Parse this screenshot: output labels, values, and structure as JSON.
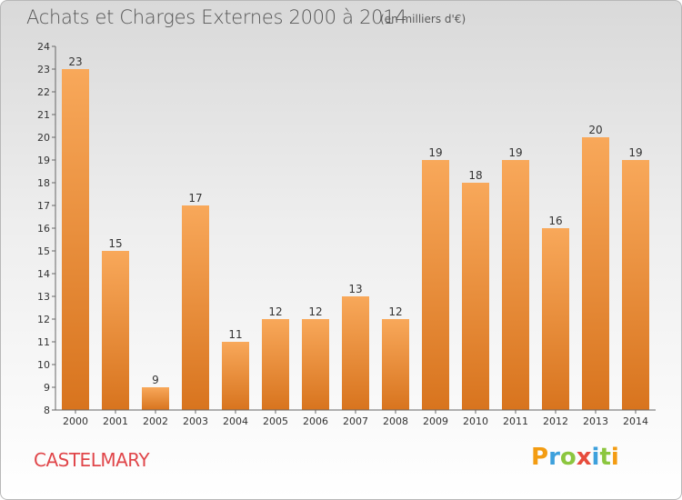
{
  "header": {
    "title": "Achats et Charges Externes 2000 à 2014",
    "subtitle": "(en milliers d'€)"
  },
  "footer": {
    "location": "CASTELMARY",
    "brand": "Proxiti",
    "brand_colors": [
      "#f39c12",
      "#3da0dc",
      "#8cc63f",
      "#e74c3c",
      "#3da0dc",
      "#8cc63f",
      "#f39c12"
    ]
  },
  "chart_data": {
    "type": "bar",
    "categories": [
      "2000",
      "2001",
      "2002",
      "2003",
      "2004",
      "2005",
      "2006",
      "2007",
      "2008",
      "2009",
      "2010",
      "2011",
      "2012",
      "2013",
      "2014"
    ],
    "values": [
      23,
      15,
      9,
      17,
      11,
      12,
      12,
      13,
      12,
      19,
      18,
      19,
      16,
      20,
      19
    ],
    "title": "Achats et Charges Externes 2000 à 2014",
    "ylim": [
      8,
      24
    ],
    "yticks": [
      8,
      9,
      10,
      11,
      12,
      13,
      14,
      15,
      16,
      17,
      18,
      19,
      20,
      21,
      22,
      23,
      24
    ],
    "grid": false,
    "bar_color_top": "#f8a85a",
    "bar_color_bottom": "#d8741e",
    "axis_color": "#666666"
  }
}
